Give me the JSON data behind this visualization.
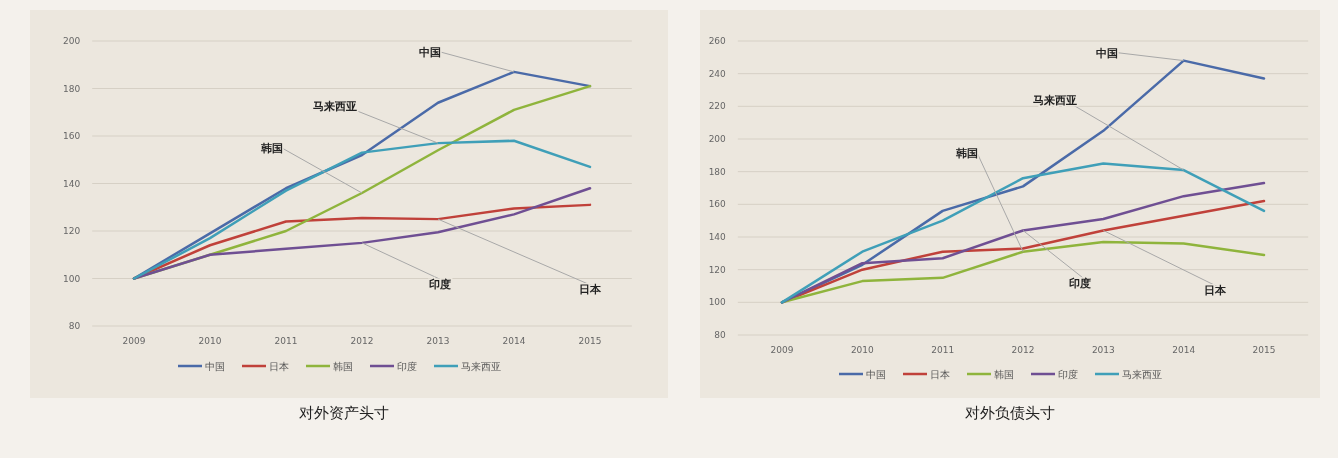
{
  "chart_data": [
    {
      "type": "line",
      "title": "对外资产头寸",
      "categories": [
        "2009",
        "2010",
        "2011",
        "2012",
        "2013",
        "2014",
        "2015"
      ],
      "ylim": [
        80,
        200
      ],
      "yticks": [
        80,
        100,
        120,
        140,
        160,
        180,
        200
      ],
      "grid": "y",
      "legend": "bottom",
      "marker": "none",
      "line_style": "solid",
      "series": [
        {
          "name": "中国",
          "color": "#4a6aa8",
          "values": [
            100,
            119,
            138,
            152,
            174,
            187,
            181
          ]
        },
        {
          "name": "日本",
          "color": "#c0413a",
          "values": [
            100,
            114,
            124,
            125.5,
            125,
            129.5,
            131
          ]
        },
        {
          "name": "韩国",
          "color": "#8fb43c",
          "values": [
            100,
            110,
            120,
            136,
            154,
            171,
            181
          ]
        },
        {
          "name": "印度",
          "color": "#6f4f93",
          "values": [
            100,
            110,
            112.5,
            115,
            119.5,
            127,
            138
          ]
        },
        {
          "name": "马来西亚",
          "color": "#3f9fb8",
          "values": [
            100,
            117,
            137,
            153,
            157,
            158,
            147
          ]
        }
      ],
      "annotations": [
        {
          "text": "中国",
          "x": "2014",
          "y": 187
        },
        {
          "text": "马来西亚",
          "x": "2013",
          "y": 157
        },
        {
          "text": "韩国",
          "x": "2012",
          "y": 136
        },
        {
          "text": "印度",
          "x": "2012",
          "y": 115
        },
        {
          "text": "日本",
          "x": "2013",
          "y": 125
        }
      ]
    },
    {
      "type": "line",
      "title": "对外负债头寸",
      "categories": [
        "2009",
        "2010",
        "2011",
        "2012",
        "2013",
        "2014",
        "2015"
      ],
      "ylim": [
        80,
        260
      ],
      "yticks": [
        80,
        100,
        120,
        140,
        160,
        180,
        200,
        220,
        240,
        260
      ],
      "grid": "y",
      "legend": "bottom",
      "marker": "none",
      "line_style": "solid",
      "series": [
        {
          "name": "中国",
          "color": "#4a6aa8",
          "values": [
            100,
            123,
            156,
            171,
            205,
            248,
            237
          ]
        },
        {
          "name": "日本",
          "color": "#c0413a",
          "values": [
            100,
            120,
            131,
            133,
            144,
            153,
            162
          ]
        },
        {
          "name": "韩国",
          "color": "#8fb43c",
          "values": [
            100,
            113,
            115,
            131,
            137,
            136,
            129
          ]
        },
        {
          "name": "印度",
          "color": "#6f4f93",
          "values": [
            100,
            124,
            127,
            144,
            151,
            165,
            173
          ]
        },
        {
          "name": "马来西亚",
          "color": "#3f9fb8",
          "values": [
            100,
            131,
            150,
            176,
            185,
            181,
            156
          ]
        }
      ],
      "annotations": [
        {
          "text": "中国",
          "x": "2014",
          "y": 248
        },
        {
          "text": "马来西亚",
          "x": "2014",
          "y": 181
        },
        {
          "text": "韩国",
          "x": "2012",
          "y": 131
        },
        {
          "text": "印度",
          "x": "2012",
          "y": 144
        },
        {
          "text": "日本",
          "x": "2013",
          "y": 144
        }
      ]
    }
  ]
}
